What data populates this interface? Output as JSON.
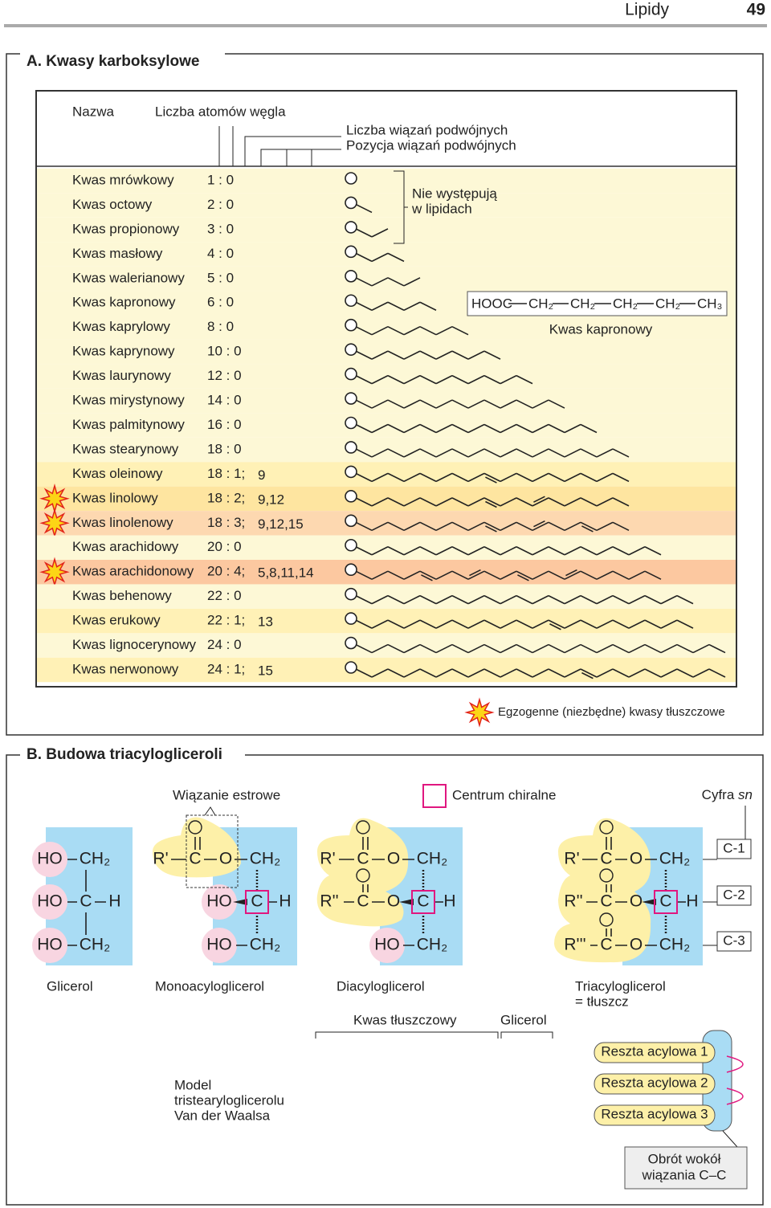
{
  "header": {
    "title": "Lipidy",
    "page": "49"
  },
  "section_a": {
    "title": "A. Kwasy karboksylowe",
    "columns": {
      "name": "Nazwa",
      "carbons": "Liczba atomów węgla",
      "double_count": "Liczba wiązań podwójnych",
      "double_positions": "Pozycja wiązań podwójnych"
    },
    "not_in_lipids": [
      "Nie występują",
      "w lipidach"
    ],
    "formula": [
      "HOOC",
      "CH₂",
      "CH₂",
      "CH₂",
      "CH₂",
      "CH₃"
    ],
    "formula_label": "Kwas kapronowy",
    "acids": [
      {
        "name": "Kwas mrówkowy",
        "ratio": "1 : 0"
      },
      {
        "name": "Kwas octowy",
        "ratio": "2 : 0"
      },
      {
        "name": "Kwas propionowy",
        "ratio": "3 : 0"
      },
      {
        "name": "Kwas masłowy",
        "ratio": "4 : 0"
      },
      {
        "name": "Kwas walerianowy",
        "ratio": "5 : 0"
      },
      {
        "name": "Kwas kapronowy",
        "ratio": "6 : 0"
      },
      {
        "name": "Kwas kaprylowy",
        "ratio": "8 : 0"
      },
      {
        "name": "Kwas kaprynowy",
        "ratio": "10 : 0"
      },
      {
        "name": "Kwas laurynowy",
        "ratio": "12 : 0"
      },
      {
        "name": "Kwas mirystynowy",
        "ratio": "14 : 0"
      },
      {
        "name": "Kwas palmitynowy",
        "ratio": "16 : 0"
      },
      {
        "name": "Kwas stearynowy",
        "ratio": "18 : 0"
      },
      {
        "name": "Kwas oleinowy",
        "ratio": "18 : 1;",
        "positions": "9",
        "color": "#fff1b6"
      },
      {
        "name": "Kwas linolowy",
        "ratio": "18 : 2;",
        "positions": "9,12",
        "essential": true,
        "color": "#fee5a0"
      },
      {
        "name": "Kwas linolenowy",
        "ratio": "18 : 3;",
        "positions": "9,12,15",
        "essential": true,
        "color": "#fdd8b0"
      },
      {
        "name": "Kwas arachidowy",
        "ratio": "20 : 0"
      },
      {
        "name": "Kwas arachidonowy",
        "ratio": "20 : 4;",
        "positions": "5,8,11,14",
        "essential": true,
        "color": "#fcc8a0"
      },
      {
        "name": "Kwas behenowy",
        "ratio": "22 : 0"
      },
      {
        "name": "Kwas erukowy",
        "ratio": "22 : 1;",
        "positions": "13",
        "color": "#fff1b6"
      },
      {
        "name": "Kwas lignocerynowy",
        "ratio": "24 : 0"
      },
      {
        "name": "Kwas nerwonowy",
        "ratio": "24 : 1;",
        "positions": "15",
        "color": "#fff1b6"
      }
    ],
    "legend": "Egzogenne (niezbędne) kwasy tłuszczowe"
  },
  "section_b": {
    "title": "B. Budowa triacylogliceroli",
    "ester_label": "Wiązanie estrowe",
    "chiral_label": "Centrum chiralne",
    "sn_label": "Cyfra",
    "sn_italic": "sn",
    "positions": [
      "C-1",
      "C-2",
      "C-3"
    ],
    "molecules": [
      {
        "name": [
          "Glicerol"
        ],
        "atoms": [
          "HO",
          "CH₂",
          "HO",
          "C",
          "H",
          "HO",
          "CH₂"
        ]
      },
      {
        "name": [
          "Monoacyloglicerol"
        ],
        "atoms": [
          "O",
          "R'",
          "C",
          "O",
          "CH₂",
          "HO",
          "C",
          "H",
          "HO",
          "CH₂"
        ]
      },
      {
        "name": [
          "Diacyloglicerol"
        ],
        "atoms": [
          "O",
          "R'",
          "C",
          "O",
          "CH₂",
          "O",
          "R''",
          "C",
          "O",
          "C",
          "H",
          "HO",
          "CH₂"
        ]
      },
      {
        "name": [
          "Triacyloglicerol",
          "= tłuszcz"
        ],
        "atoms": [
          "O",
          "R'",
          "C",
          "O",
          "CH₂",
          "O",
          "R''",
          "C",
          "O",
          "C",
          "H",
          "O",
          "R'''",
          "C",
          "O",
          "CH₂"
        ]
      }
    ],
    "fatty_acid_label": "Kwas tłuszczowy",
    "glycerol_label": "Glicerol",
    "model_label": [
      "Model",
      "tristearyloglicerolu",
      "Van der Waalsa"
    ],
    "acyl_residues": [
      "Reszta  acylowa 1",
      "Reszta  acylowa 2",
      "Reszta  acylowa 3"
    ],
    "rotation_label": [
      "Obrót wokół",
      "wiązania C–C"
    ]
  }
}
